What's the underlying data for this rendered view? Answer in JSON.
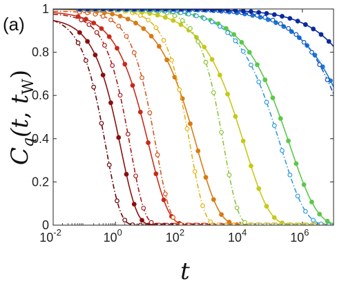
{
  "chart_data": {
    "type": "line",
    "panel_label": "(a)",
    "xlabel": "t",
    "ylabel": "C_q(t, t_w)",
    "x_scale": "log",
    "xlim": [
      0.01,
      10000000
    ],
    "ylim": [
      0,
      1
    ],
    "y_ticks": [
      "0",
      "0.2",
      "0.4",
      "0.6",
      "0.8",
      "1"
    ],
    "x_ticks": [
      {
        "value": 0.01,
        "base": "10",
        "exp": "-2"
      },
      {
        "value": 1,
        "base": "10",
        "exp": "0"
      },
      {
        "value": 100,
        "base": "10",
        "exp": "2"
      },
      {
        "value": 10000,
        "base": "10",
        "exp": "4"
      },
      {
        "value": 1000000,
        "base": "10",
        "exp": "6"
      }
    ],
    "series": [
      {
        "color": "#6b0000",
        "tau": 0.5,
        "beta": 0.95,
        "plateau": 0.97,
        "line": "dashdot",
        "marker": "open"
      },
      {
        "color": "#8a0e0e",
        "tau": 1.5,
        "beta": 0.85,
        "plateau": 0.96,
        "line": "solid",
        "marker": "filled"
      },
      {
        "color": "#a81818",
        "tau": 3,
        "beta": 0.95,
        "plateau": 0.98,
        "line": "dashdot",
        "marker": "open"
      },
      {
        "color": "#c82a1a",
        "tau": 12,
        "beta": 0.7,
        "plateau": 0.99,
        "line": "solid",
        "marker": "filled"
      },
      {
        "color": "#d4551a",
        "tau": 20,
        "beta": 0.95,
        "plateau": 0.99,
        "line": "dashdot",
        "marker": "open"
      },
      {
        "color": "#d87a12",
        "tau": 400,
        "beta": 0.6,
        "plateau": 1.0,
        "line": "solid",
        "marker": "filled"
      },
      {
        "color": "#e0b218",
        "tau": 250,
        "beta": 0.95,
        "plateau": 1.0,
        "line": "dashdot",
        "marker": "open"
      },
      {
        "color": "#c8c81a",
        "tau": 14000,
        "beta": 0.55,
        "plateau": 1.0,
        "line": "solid",
        "marker": "filled"
      },
      {
        "color": "#8ec43a",
        "tau": 3000,
        "beta": 0.95,
        "plateau": 1.0,
        "line": "dashdot",
        "marker": "open"
      },
      {
        "color": "#5cc84a",
        "tau": 400000,
        "beta": 0.5,
        "plateau": 1.0,
        "line": "solid",
        "marker": "filled"
      },
      {
        "color": "#2f9be0",
        "tau": 200000,
        "beta": 0.55,
        "plateau": 1.0,
        "line": "dashdot",
        "marker": "open"
      },
      {
        "color": "#1a78d8",
        "tau": 60000000,
        "beta": 0.45,
        "plateau": 1.0,
        "line": "solid",
        "marker": "filled"
      },
      {
        "color": "#1452c0",
        "tau": 40000000,
        "beta": 0.5,
        "plateau": 1.0,
        "line": "dashdot",
        "marker": "open"
      },
      {
        "color": "#0a2aa0",
        "tau": 400000000,
        "beta": 0.45,
        "plateau": 1.0,
        "line": "solid",
        "marker": "filled"
      }
    ]
  }
}
